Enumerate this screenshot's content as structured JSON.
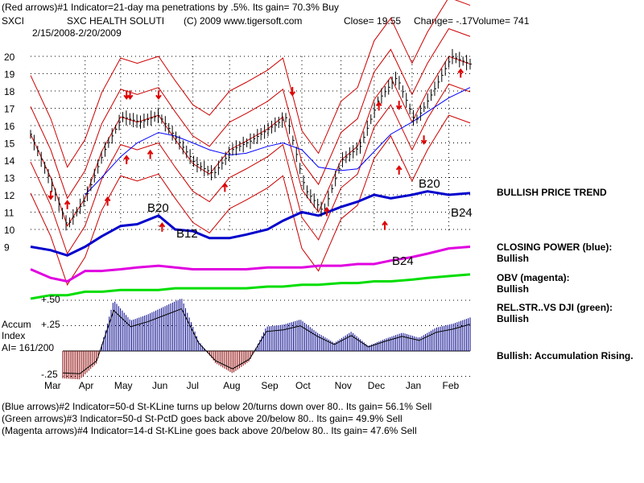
{
  "header": {
    "line1": "(Red arrows)#1 Indicator=21-day ma penetrations by .5%.  Its gain= 70.3% Buy",
    "ticker": "SXCI",
    "company": "SXC HEALTH SOLUTI",
    "copyright": "(C) 2009 www.tigersoft.com",
    "close": "Close=  19.55",
    "change": "Change= -.17",
    "volume": "Volume= 741",
    "date_range": "2/15/2008-2/20/2009"
  },
  "footer": {
    "line1": "(Blue arrows)#2 Indicator=50-d St-KLine turns up below 20/turns down over 80..  Its gain= 56.1% Sell",
    "line2": "(Green arrows)#3 Indicator=50-d St-PctD goes back above 20/below 80..  Its gain= 49.9% Sell",
    "line3": "(Magenta arrows)#4 Indicator=14-d St-KLine goes back above 20/below 80..  Its gain= 47.6% Sell"
  },
  "side_labels": {
    "trend": "BULLISH PRICE TREND",
    "cp_title": "CLOSING POWER (blue):",
    "cp_value": "Bullish",
    "obv_title": "OBV (magenta):",
    "obv_value": "Bullish",
    "rs_title": "REL.STR..VS DJI (green):",
    "rs_value": "Bullish",
    "accum_note": "Bullish: Accumulation Rising."
  },
  "accum_panel": {
    "title_line1": "Accum",
    "title_line2": "Index",
    "ai_reading": "AI= 161/200",
    "tick_top": "+.50",
    "tick_mid": "+.25",
    "tick_bottom": "-.25"
  },
  "annotations": {
    "b20_left": "B20",
    "b12": "B12",
    "b20_right": "B20",
    "b24_right": "B24",
    "b24_low": "B24"
  },
  "colors": {
    "price_bars": "#000000",
    "bands": "#cc0000",
    "ma50": "#0000ff",
    "closing_power": "#0000cc",
    "obv": "#e000e0",
    "rel_strength": "#00dd00",
    "accum_positive": "#00008b",
    "accum_negative": "#8b0000",
    "arrows": "#dd0000"
  },
  "chart_data": {
    "type": "line",
    "title": "SXCI  SXC HEALTH SOLUTI",
    "xlabel": "",
    "ylabel": "",
    "month_labels": [
      "Mar",
      "Apr",
      "May",
      "Jun",
      "Jul",
      "Aug",
      "Sep",
      "Oct",
      "Nov",
      "Dec",
      "Jan",
      "Feb"
    ],
    "price_ticks": [
      9,
      10,
      11,
      12,
      13,
      14,
      15,
      16,
      17,
      18,
      19,
      20
    ],
    "ylim": [
      9,
      20.6
    ],
    "x": [
      "2008-02-15",
      "2008-03-03",
      "2008-03-17",
      "2008-04-01",
      "2008-04-15",
      "2008-05-01",
      "2008-05-15",
      "2008-06-02",
      "2008-06-16",
      "2008-07-01",
      "2008-07-15",
      "2008-08-01",
      "2008-08-15",
      "2008-09-02",
      "2008-09-15",
      "2008-10-01",
      "2008-10-15",
      "2008-11-03",
      "2008-11-17",
      "2008-12-01",
      "2008-12-15",
      "2009-01-02",
      "2009-01-15",
      "2009-02-02",
      "2009-02-20"
    ],
    "series": [
      {
        "name": "Price",
        "values": [
          15.5,
          13.0,
          10.2,
          11.8,
          14.5,
          16.5,
          16.2,
          16.6,
          15.2,
          13.8,
          13.2,
          14.6,
          15.1,
          15.8,
          16.5,
          12.3,
          11.0,
          14.0,
          14.8,
          17.5,
          18.8,
          16.2,
          18.0,
          20.0,
          19.55
        ]
      },
      {
        "name": "50-day MA",
        "values": [
          null,
          null,
          null,
          12.0,
          13.0,
          14.2,
          15.0,
          15.6,
          15.4,
          15.0,
          14.6,
          14.3,
          14.4,
          14.8,
          15.0,
          14.6,
          13.6,
          13.4,
          13.5,
          14.5,
          15.5,
          16.2,
          16.8,
          17.6,
          18.2
        ]
      },
      {
        "name": "CLOSING POWER (blue)",
        "values": [
          9.0,
          8.8,
          8.5,
          9.0,
          9.6,
          10.2,
          10.3,
          10.8,
          10.0,
          9.9,
          9.5,
          9.5,
          9.7,
          10.0,
          10.5,
          11.0,
          10.8,
          11.3,
          11.6,
          12.0,
          11.8,
          12.0,
          12.2,
          12.0,
          12.1
        ]
      },
      {
        "name": "OBV (magenta)",
        "values": [
          7.7,
          7.2,
          7.0,
          7.6,
          7.6,
          7.7,
          7.8,
          7.9,
          7.8,
          7.7,
          7.7,
          7.7,
          7.7,
          7.8,
          7.8,
          7.8,
          7.9,
          7.9,
          8.0,
          8.0,
          8.2,
          8.4,
          8.6,
          8.9,
          9.0
        ]
      },
      {
        "name": "REL.STR..VS DJI (green)",
        "values": [
          6.0,
          6.2,
          6.2,
          6.4,
          6.4,
          6.5,
          6.5,
          6.5,
          6.6,
          6.6,
          6.6,
          6.6,
          6.6,
          6.7,
          6.7,
          6.8,
          6.8,
          6.9,
          6.9,
          7.0,
          7.0,
          7.1,
          7.2,
          7.3,
          7.4
        ]
      }
    ],
    "accumulation_index": {
      "values": [
        -0.27,
        -0.28,
        -0.12,
        0.5,
        0.3,
        0.36,
        0.44,
        0.52,
        0.1,
        -0.12,
        -0.22,
        -0.1,
        0.24,
        0.26,
        0.31,
        0.18,
        0.08,
        0.19,
        0.05,
        0.12,
        0.18,
        0.13,
        0.23,
        0.27,
        0.33
      ],
      "ticks": [
        0.5,
        0.25,
        -0.25
      ]
    },
    "legend": "right"
  }
}
